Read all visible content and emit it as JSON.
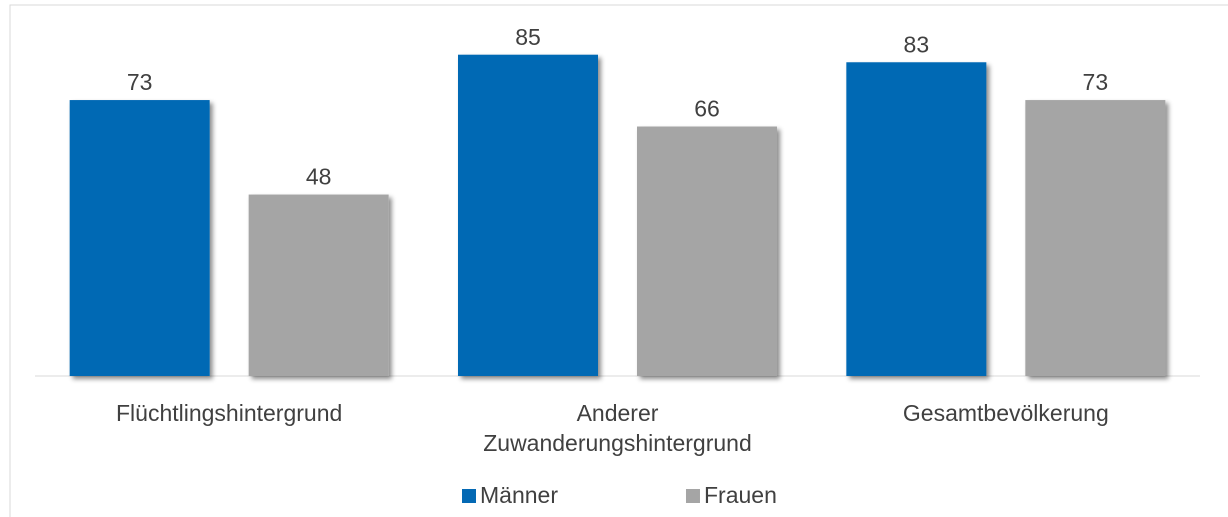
{
  "chart_data": {
    "type": "bar",
    "categories": [
      "Flüchtlingshintergrund",
      "Anderer Zuwanderungshintergrund",
      "Gesamtbevölkerung"
    ],
    "series": [
      {
        "name": "Männer",
        "color": "#0469b4",
        "values": [
          73,
          85,
          83
        ]
      },
      {
        "name": "Frauen",
        "color": "#a5a5a5",
        "values": [
          48,
          66,
          73
        ]
      }
    ],
    "ylim": [
      0,
      90
    ],
    "legend": "bottom"
  }
}
